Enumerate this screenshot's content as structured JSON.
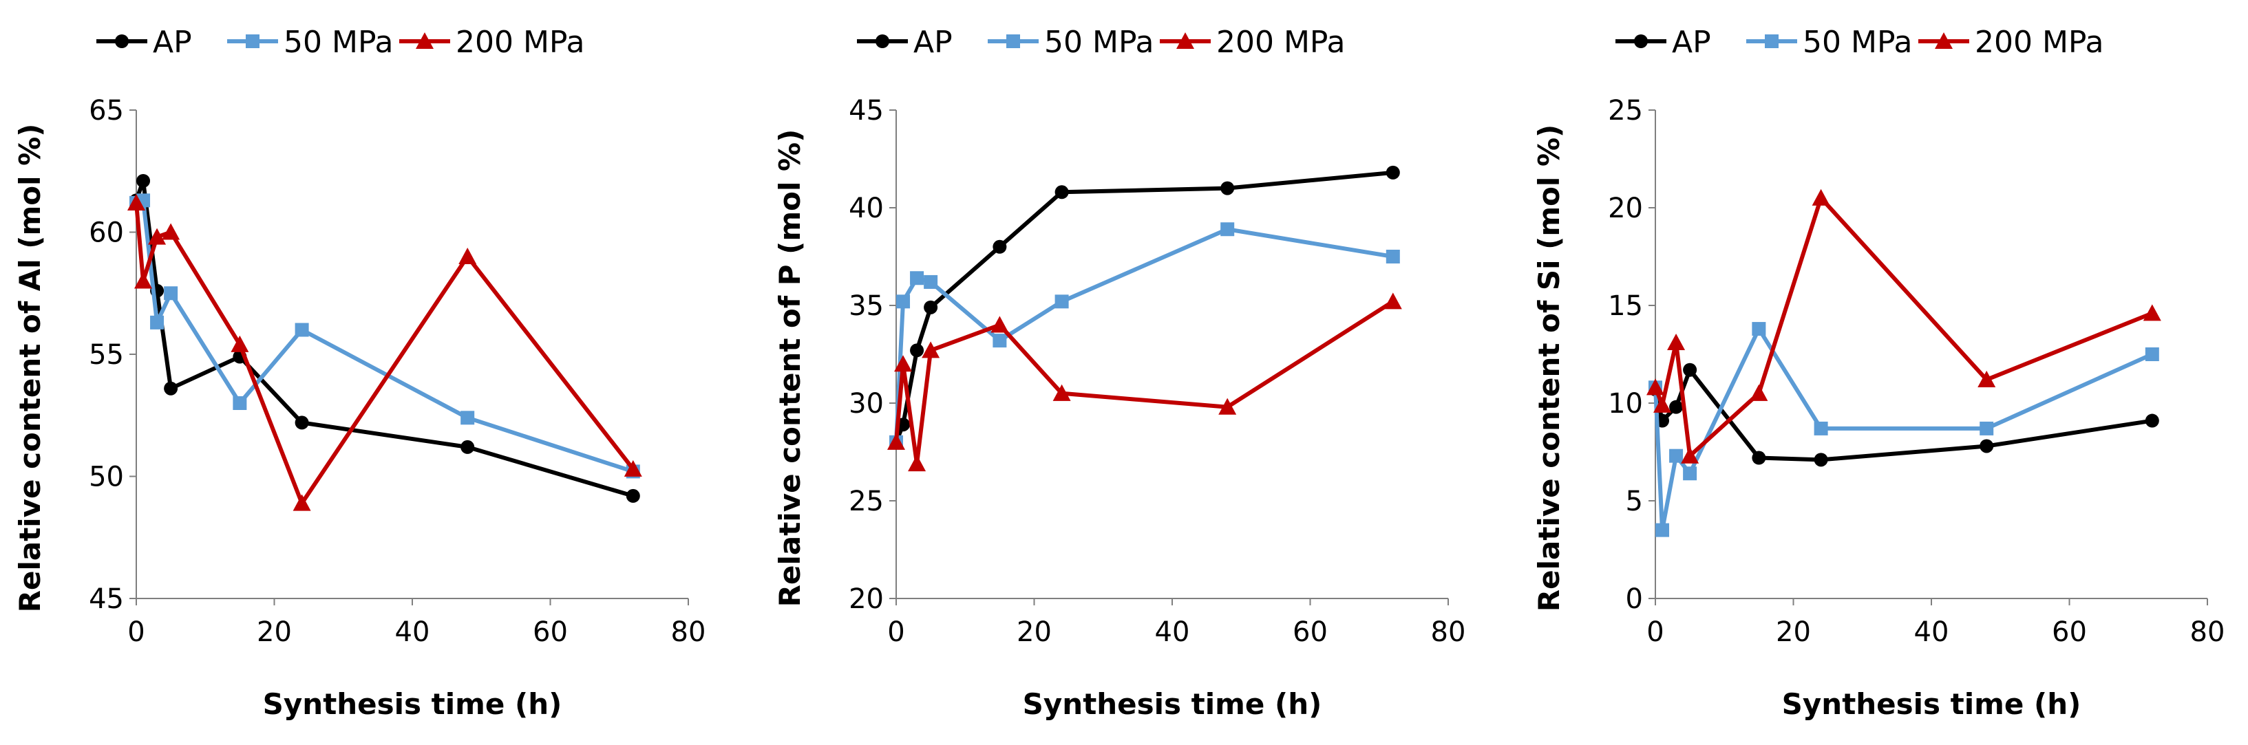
{
  "chart_data": [
    {
      "type": "line",
      "title": "",
      "xlabel": "Synthesis time (h)",
      "ylabel": "Relative content of Al (mol %)",
      "xlim": [
        0,
        80
      ],
      "ylim": [
        45,
        65
      ],
      "xticks": [
        "0",
        "20",
        "40",
        "60",
        "80"
      ],
      "yticks": [
        "45",
        "50",
        "55",
        "60",
        "65"
      ],
      "grid": false,
      "legend_position": "top",
      "series": [
        {
          "name": "AP",
          "color": "#000000",
          "marker": "circle",
          "x": [
            0,
            1,
            3,
            5,
            15,
            24,
            48,
            72
          ],
          "y": [
            61.3,
            62.1,
            57.6,
            53.6,
            54.9,
            52.2,
            51.2,
            49.2
          ]
        },
        {
          "name": "50 MPa",
          "color": "#5B9BD5",
          "marker": "square",
          "x": [
            0,
            1,
            3,
            5,
            15,
            24,
            48,
            72
          ],
          "y": [
            61.2,
            61.3,
            56.3,
            57.5,
            53.0,
            56.0,
            52.4,
            50.2
          ]
        },
        {
          "name": "200 MPa",
          "color": "#C00000",
          "marker": "triangle",
          "x": [
            0,
            1,
            3,
            5,
            15,
            24,
            48,
            72
          ],
          "y": [
            61.2,
            58.0,
            59.8,
            60.0,
            55.4,
            48.9,
            59.0,
            50.3
          ]
        }
      ]
    },
    {
      "type": "line",
      "title": "",
      "xlabel": "Synthesis time (h)",
      "ylabel": "Relative content of P (mol %)",
      "xlim": [
        0,
        80
      ],
      "ylim": [
        20,
        45
      ],
      "xticks": [
        "0",
        "20",
        "40",
        "60",
        "80"
      ],
      "yticks": [
        "20",
        "25",
        "30",
        "35",
        "40",
        "45"
      ],
      "grid": false,
      "legend_position": "top",
      "series": [
        {
          "name": "AP",
          "color": "#000000",
          "marker": "circle",
          "x": [
            0,
            1,
            3,
            5,
            15,
            24,
            48,
            72
          ],
          "y": [
            28.0,
            28.9,
            32.7,
            34.9,
            38.0,
            40.8,
            41.0,
            41.8
          ]
        },
        {
          "name": "50 MPa",
          "color": "#5B9BD5",
          "marker": "square",
          "x": [
            0,
            1,
            3,
            5,
            15,
            24,
            48,
            72
          ],
          "y": [
            28.0,
            35.2,
            36.4,
            36.2,
            33.2,
            35.2,
            38.9,
            37.5
          ]
        },
        {
          "name": "200 MPa",
          "color": "#C00000",
          "marker": "triangle",
          "x": [
            0,
            1,
            3,
            5,
            15,
            24,
            48,
            72
          ],
          "y": [
            28.0,
            32.0,
            26.9,
            32.7,
            34.0,
            30.5,
            29.8,
            35.2
          ]
        }
      ]
    },
    {
      "type": "line",
      "title": "",
      "xlabel": "Synthesis time (h)",
      "ylabel": "Relative content of Si (mol %)",
      "xlim": [
        0,
        80
      ],
      "ylim": [
        0,
        25
      ],
      "xticks": [
        "0",
        "20",
        "40",
        "60",
        "80"
      ],
      "yticks": [
        "0",
        "5",
        "10",
        "15",
        "20",
        "25"
      ],
      "grid": false,
      "legend_position": "top",
      "series": [
        {
          "name": "AP",
          "color": "#000000",
          "marker": "circle",
          "x": [
            0,
            1,
            3,
            5,
            15,
            24,
            48,
            72
          ],
          "y": [
            10.7,
            9.1,
            9.8,
            11.7,
            7.2,
            7.1,
            7.8,
            9.1
          ]
        },
        {
          "name": "50 MPa",
          "color": "#5B9BD5",
          "marker": "square",
          "x": [
            0,
            1,
            3,
            5,
            15,
            24,
            48,
            72
          ],
          "y": [
            10.8,
            3.5,
            7.3,
            6.4,
            13.8,
            8.7,
            8.7,
            12.5
          ]
        },
        {
          "name": "200 MPa",
          "color": "#C00000",
          "marker": "triangle",
          "x": [
            0,
            1,
            3,
            5,
            15,
            24,
            48,
            72
          ],
          "y": [
            10.8,
            9.9,
            13.1,
            7.3,
            10.5,
            20.5,
            11.2,
            14.6
          ]
        }
      ]
    }
  ]
}
